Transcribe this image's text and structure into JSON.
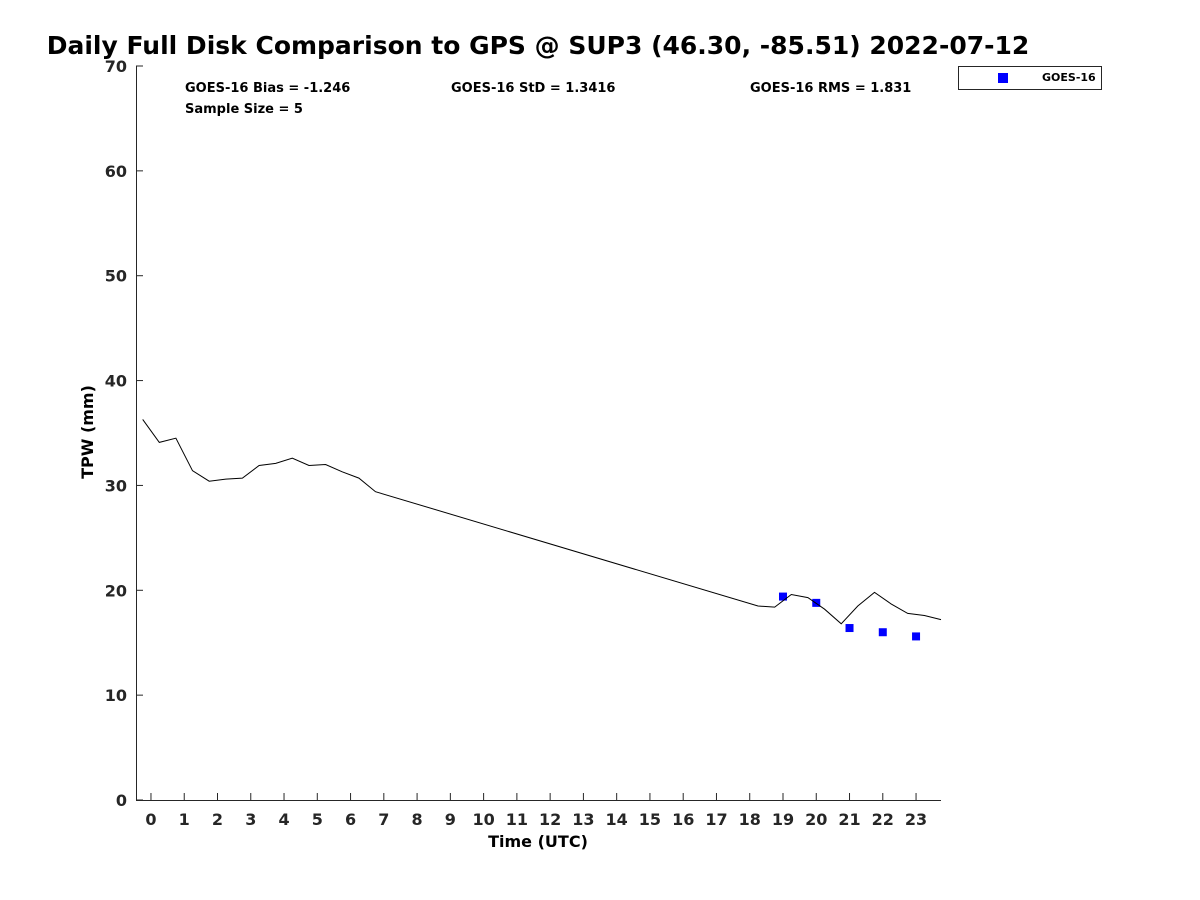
{
  "chart_data": {
    "type": "scatter",
    "title": "Daily Full Disk Comparison to GPS @ SUP3 (46.30, -85.51) 2022-07-12",
    "xlabel": "Time (UTC)",
    "ylabel": "TPW (mm)",
    "xlim": [
      -0.45,
      23.75
    ],
    "ylim": [
      0,
      70
    ],
    "xticks": [
      0,
      1,
      2,
      3,
      4,
      5,
      6,
      7,
      8,
      9,
      10,
      11,
      12,
      13,
      14,
      15,
      16,
      17,
      18,
      19,
      20,
      21,
      22,
      23
    ],
    "yticks": [
      0,
      10,
      20,
      30,
      40,
      50,
      60,
      70
    ],
    "grid": false,
    "legend_position": "top-right, outside plot",
    "stats": {
      "bias": "GOES-16 Bias = -1.246",
      "std": "GOES-16 StD = 1.3416",
      "rms": "GOES-16 RMS = 1.831",
      "sample": "Sample Size = 5"
    },
    "series": [
      {
        "name": "GOES-16",
        "marker": "square",
        "color": "#0000ff",
        "x": [
          19,
          20,
          21,
          22,
          23
        ],
        "y": [
          19.4,
          18.8,
          16.4,
          16.0,
          15.6
        ]
      },
      {
        "marker": "line",
        "color": "#000000",
        "x": [
          -0.25,
          0.25,
          0.75,
          1.25,
          1.75,
          2.25,
          2.75,
          3.25,
          3.75,
          4.25,
          4.75,
          5.25,
          5.75,
          6.25,
          6.75,
          18.25,
          18.75,
          19.25,
          19.75,
          20.25,
          20.75,
          21.25,
          21.75,
          22.25,
          22.75,
          23.25,
          23.75
        ],
        "y": [
          36.3,
          34.1,
          34.5,
          31.4,
          30.4,
          30.6,
          30.7,
          31.9,
          32.1,
          32.6,
          31.9,
          32.0,
          31.3,
          30.7,
          29.4,
          18.5,
          18.4,
          19.6,
          19.3,
          18.2,
          16.8,
          18.5,
          19.8,
          18.7,
          17.8,
          17.6,
          17.2
        ]
      }
    ]
  }
}
